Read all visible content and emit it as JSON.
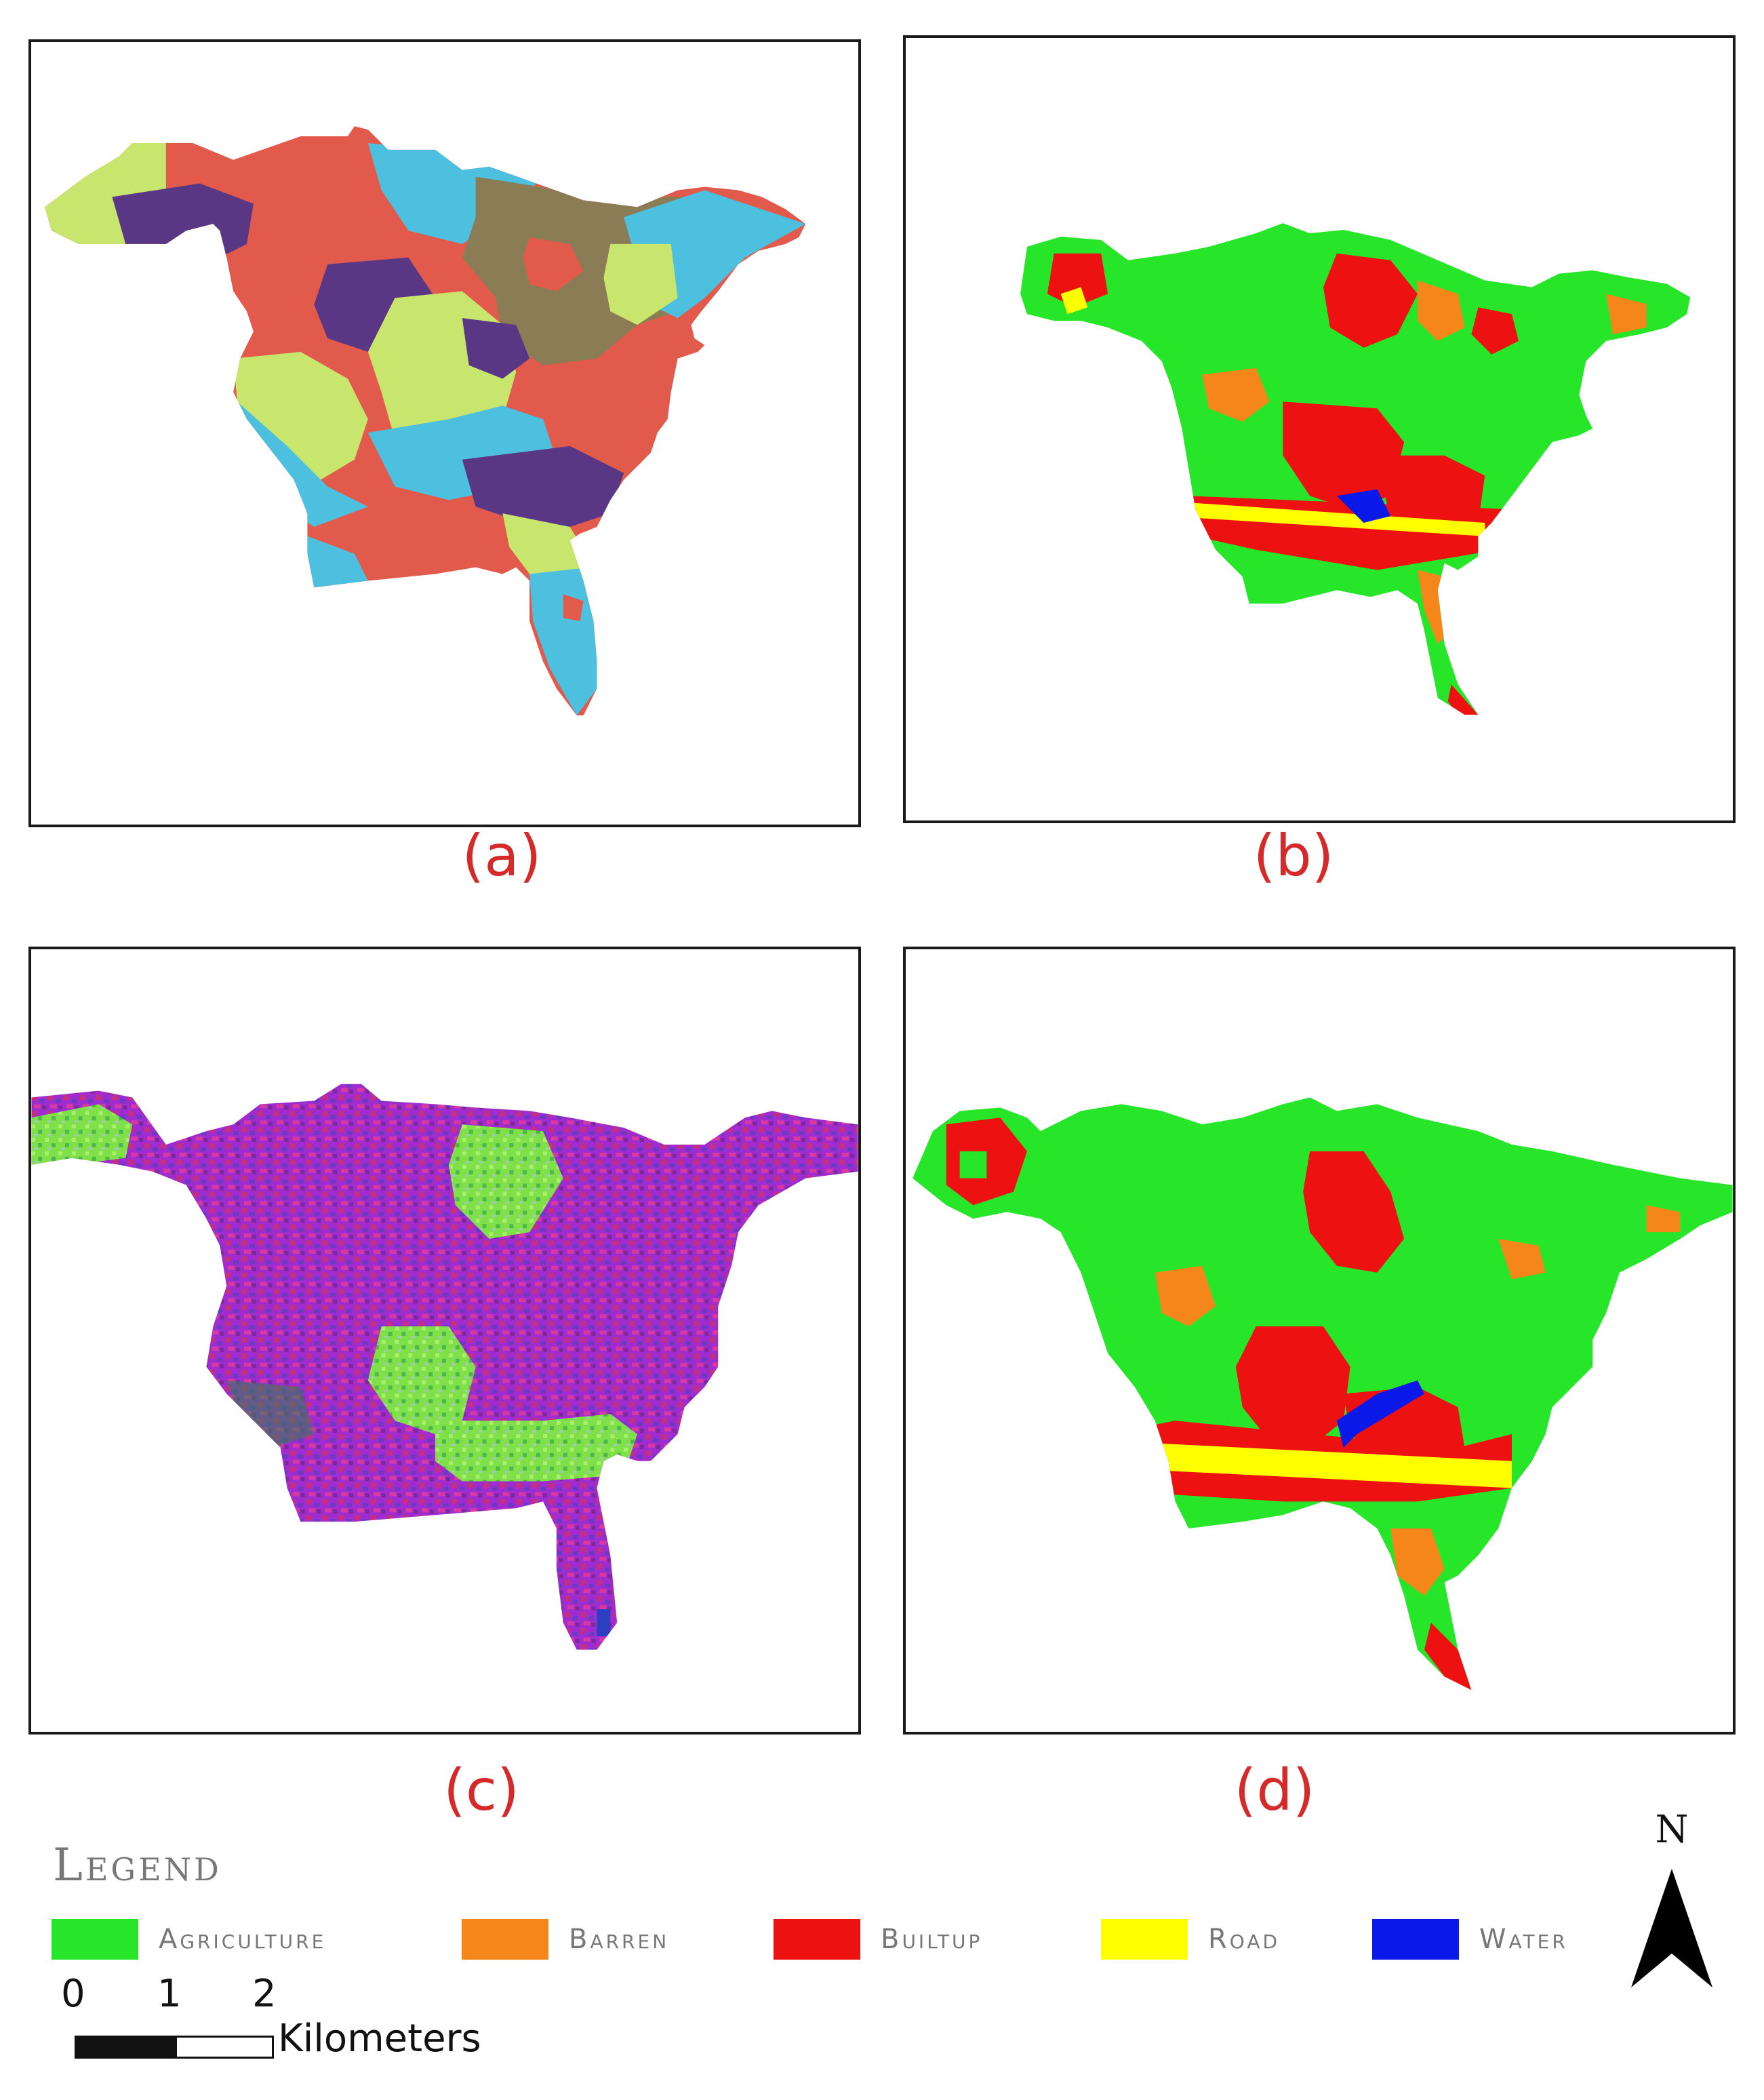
{
  "captions": {
    "a": "(a)",
    "b": "(b)",
    "c": "(c)",
    "d": "(d)"
  },
  "legend": {
    "title": "Legend",
    "items": [
      {
        "label": "Agriculture",
        "color": "#27e62a"
      },
      {
        "label": "Barren",
        "color": "#f5861a"
      },
      {
        "label": "Builtup",
        "color": "#ee1111"
      },
      {
        "label": "Road",
        "color": "#ffff00"
      },
      {
        "label": "Water",
        "color": "#0a18e8"
      }
    ]
  },
  "scale": {
    "ticks": [
      "0",
      "1",
      "2"
    ],
    "unit": "Kilometers"
  },
  "north_arrow": {
    "label": "N"
  },
  "segment_colors": [
    "#c8e56e",
    "#e25a4b",
    "#5a3785",
    "#4dc0df",
    "#8a7d55"
  ]
}
